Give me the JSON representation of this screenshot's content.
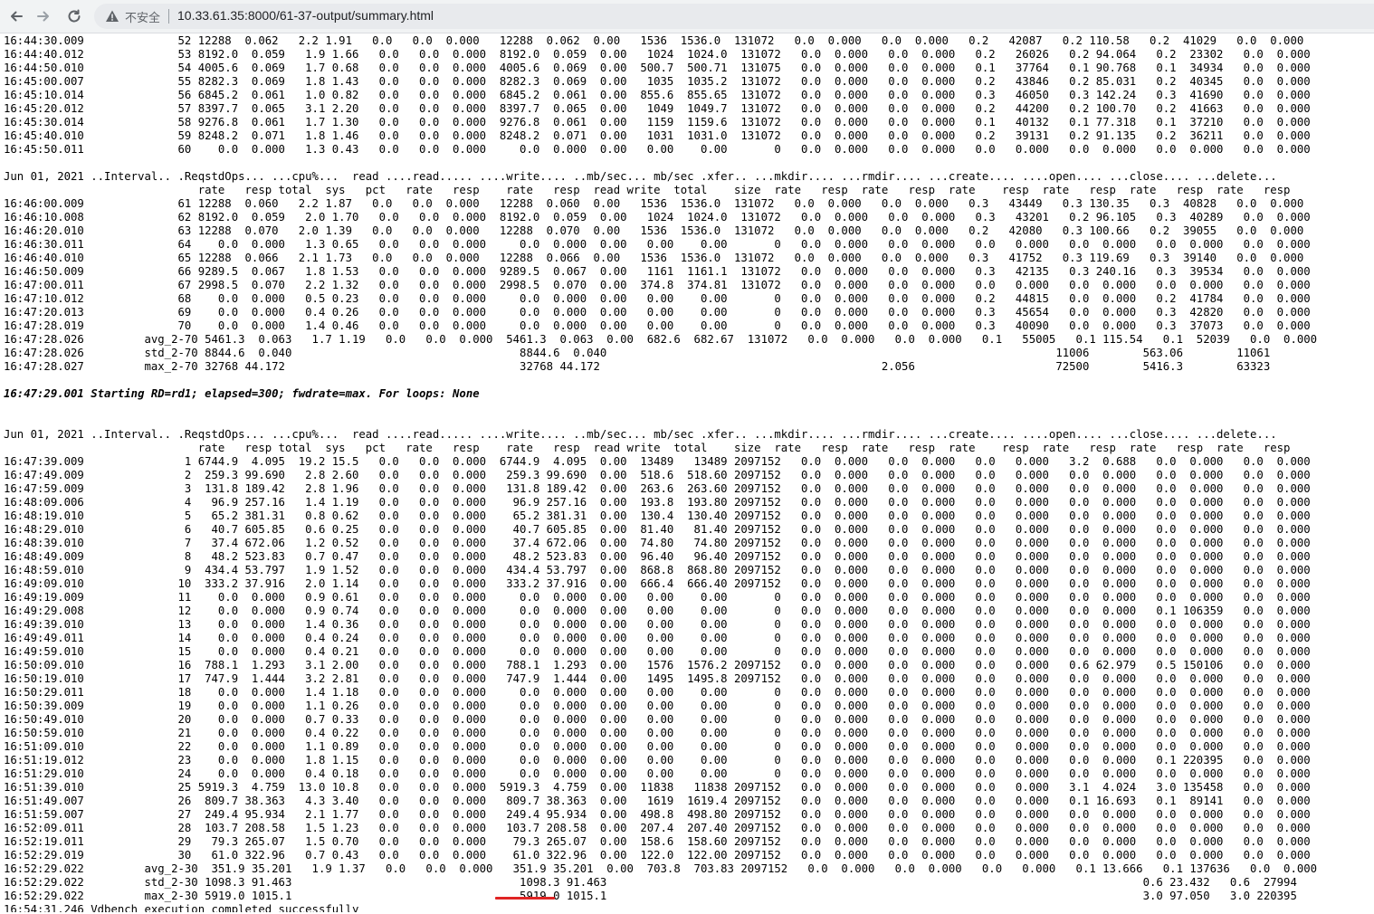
{
  "browser": {
    "security_label": "不安全",
    "url": "10.33.61.35:8000/61-37-output/summary.html"
  },
  "output_lines": [
    {
      "text": "16:44:30.009              52 12288  0.062   2.2 1.91   0.0   0.0  0.000   12288  0.062  0.00   1536  1536.0  131072   0.0  0.000   0.0  0.000   0.2   42087   0.2 110.58   0.2  41029   0.0  0.000",
      "bold": false
    },
    {
      "text": "16:44:40.012              53 8192.0  0.059   1.9 1.66   0.0   0.0  0.000  8192.0  0.059  0.00   1024  1024.0  131072   0.0  0.000   0.0  0.000   0.2   26026   0.2 94.064   0.2  23302   0.0  0.000",
      "bold": false
    },
    {
      "text": "16:44:50.010              54 4005.6  0.069   1.7 0.68   0.0   0.0  0.000  4005.6  0.069  0.00  500.7  500.71  131075   0.0  0.000   0.0  0.000   0.1   37764   0.1 90.768   0.1  34934   0.0  0.000",
      "bold": false
    },
    {
      "text": "16:45:00.007              55 8282.3  0.069   1.8 1.43   0.0   0.0  0.000  8282.3  0.069  0.00   1035  1035.2  131072   0.0  0.000   0.0  0.000   0.2   43846   0.2 85.031   0.2  40345   0.0  0.000",
      "bold": false
    },
    {
      "text": "16:45:10.014              56 6845.2  0.061   1.0 0.82   0.0   0.0  0.000  6845.2  0.061  0.00  855.6  855.65  131072   0.0  0.000   0.0  0.000   0.3   46050   0.3 142.24   0.3  41690   0.0  0.000",
      "bold": false
    },
    {
      "text": "16:45:20.012              57 8397.7  0.065   3.1 2.20   0.0   0.0  0.000  8397.7  0.065  0.00   1049  1049.7  131072   0.0  0.000   0.0  0.000   0.2   44200   0.2 100.70   0.2  41663   0.0  0.000",
      "bold": false
    },
    {
      "text": "16:45:30.014              58 9276.8  0.061   1.7 1.30   0.0   0.0  0.000  9276.8  0.061  0.00   1159  1159.6  131072   0.0  0.000   0.0  0.000   0.1   40132   0.1 77.318   0.1  37210   0.0  0.000",
      "bold": false
    },
    {
      "text": "16:45:40.010              59 8248.2  0.071   1.8 1.46   0.0   0.0  0.000  8248.2  0.071  0.00   1031  1031.0  131072   0.0  0.000   0.0  0.000   0.2   39131   0.2 91.135   0.2  36211   0.0  0.000",
      "bold": false
    },
    {
      "text": "16:45:50.011              60    0.0  0.000   1.3 0.43   0.0   0.0  0.000     0.0  0.000  0.00   0.00    0.00       0   0.0  0.000   0.0  0.000   0.0   0.000   0.0  0.000   0.0  0.000   0.0  0.000",
      "bold": false
    },
    {
      "text": "",
      "bold": false
    },
    {
      "text": "Jun 01, 2021 ..Interval.. .ReqstdOps... ...cpu%...  read ....read..... ....write.... ..mb/sec... mb/sec .xfer.. ...mkdir.... ...rmdir.... ...create.... ....open.... ...close.... ...delete...",
      "bold": false
    },
    {
      "text": "                             rate   resp total  sys   pct   rate   resp    rate   resp  read write  total    size  rate   resp  rate   resp  rate    resp  rate   resp  rate   resp  rate   resp",
      "bold": false
    },
    {
      "text": "16:46:00.009              61 12288  0.060   2.2 1.87   0.0   0.0  0.000   12288  0.060  0.00   1536  1536.0  131072   0.0  0.000   0.0  0.000   0.3   43449   0.3 130.35   0.3  40828   0.0  0.000",
      "bold": false
    },
    {
      "text": "16:46:10.008              62 8192.0  0.059   2.0 1.70   0.0   0.0  0.000  8192.0  0.059  0.00   1024  1024.0  131072   0.0  0.000   0.0  0.000   0.3   43201   0.2 96.105   0.3  40289   0.0  0.000",
      "bold": false
    },
    {
      "text": "16:46:20.010              63 12288  0.070   2.0 1.39   0.0   0.0  0.000   12288  0.070  0.00   1536  1536.0  131072   0.0  0.000   0.0  0.000   0.2   42080   0.3 100.66   0.2  39055   0.0  0.000",
      "bold": false
    },
    {
      "text": "16:46:30.011              64    0.0  0.000   1.3 0.65   0.0   0.0  0.000     0.0  0.000  0.00   0.00    0.00       0   0.0  0.000   0.0  0.000   0.0   0.000   0.0  0.000   0.0  0.000   0.0  0.000",
      "bold": false
    },
    {
      "text": "16:46:40.010              65 12288  0.066   2.1 1.73   0.0   0.0  0.000   12288  0.066  0.00   1536  1536.0  131072   0.0  0.000   0.0  0.000   0.3   41752   0.3 119.69   0.3  39140   0.0  0.000",
      "bold": false
    },
    {
      "text": "16:46:50.009              66 9289.5  0.067   1.8 1.53   0.0   0.0  0.000  9289.5  0.067  0.00   1161  1161.1  131072   0.0  0.000   0.0  0.000   0.3   42135   0.3 240.16   0.3  39534   0.0  0.000",
      "bold": false
    },
    {
      "text": "16:47:00.011              67 2998.5  0.070   2.2 1.32   0.0   0.0  0.000  2998.5  0.070  0.00  374.8  374.81  131072   0.0  0.000   0.0  0.000   0.0   0.000   0.0  0.000   0.0  0.000   0.0  0.000",
      "bold": false
    },
    {
      "text": "16:47:10.012              68    0.0  0.000   0.5 0.23   0.0   0.0  0.000     0.0  0.000  0.00   0.00    0.00       0   0.0  0.000   0.0  0.000   0.2   44815   0.0  0.000   0.2  41784   0.0  0.000",
      "bold": false
    },
    {
      "text": "16:47:20.013              69    0.0  0.000   0.4 0.26   0.0   0.0  0.000     0.0  0.000  0.00   0.00    0.00       0   0.0  0.000   0.0  0.000   0.3   45654   0.0  0.000   0.3  42820   0.0  0.000",
      "bold": false
    },
    {
      "text": "16:47:28.019              70    0.0  0.000   1.4 0.46   0.0   0.0  0.000     0.0  0.000  0.00   0.00    0.00       0   0.0  0.000   0.0  0.000   0.3   40090   0.0  0.000   0.3  37073   0.0  0.000",
      "bold": false
    },
    {
      "text": "16:47:28.026         avg_2-70 5461.3  0.063   1.7 1.19   0.0   0.0  0.000  5461.3  0.063  0.00  682.6  682.67  131072   0.0  0.000   0.0  0.000   0.1   55005   0.1 115.54   0.1  52039   0.0  0.000",
      "bold": false
    },
    {
      "text": "16:47:28.026         std_2-70 8844.6  0.040                                  8844.6  0.040                                                                   11006        563.06        11061",
      "bold": false
    },
    {
      "text": "16:47:28.027         max_2-70 32768 44.172                                   32768 44.172                                          2.056                     72500        5416.3        63323",
      "bold": false
    },
    {
      "text": "",
      "bold": false
    },
    {
      "text": "16:47:29.001 Starting RD=rd1; elapsed=300; fwdrate=max. For loops: None",
      "bold": true
    },
    {
      "text": "",
      "bold": false
    },
    {
      "text": "",
      "bold": false
    },
    {
      "text": "Jun 01, 2021 ..Interval.. .ReqstdOps... ...cpu%...  read ....read..... ....write.... ..mb/sec... mb/sec .xfer.. ...mkdir.... ...rmdir.... ...create.... ....open.... ...close.... ...delete...",
      "bold": false
    },
    {
      "text": "                             rate   resp total  sys   pct   rate   resp    rate   resp  read write  total    size  rate   resp  rate   resp  rate    resp  rate   resp  rate   resp  rate   resp",
      "bold": false
    },
    {
      "text": "16:47:39.009               1 6744.9  4.095  19.2 15.5   0.0   0.0  0.000  6744.9  4.095  0.00  13489   13489 2097152   0.0  0.000   0.0  0.000   0.0   0.000   3.2  0.688   0.0  0.000   0.0  0.000",
      "bold": false
    },
    {
      "text": "16:47:49.009               2  259.3 99.690   2.8 2.60   0.0   0.0  0.000   259.3 99.690  0.00  518.6  518.60 2097152   0.0  0.000   0.0  0.000   0.0   0.000   0.0  0.000   0.0  0.000   0.0  0.000",
      "bold": false
    },
    {
      "text": "16:47:59.009               3  131.8 189.42   2.8 1.96   0.0   0.0  0.000   131.8 189.42  0.00  263.6  263.60 2097152   0.0  0.000   0.0  0.000   0.0   0.000   0.0  0.000   0.0  0.000   0.0  0.000",
      "bold": false
    },
    {
      "text": "16:48:09.006               4   96.9 257.16   1.4 1.19   0.0   0.0  0.000    96.9 257.16  0.00  193.8  193.80 2097152   0.0  0.000   0.0  0.000   0.0   0.000   0.0  0.000   0.0  0.000   0.0  0.000",
      "bold": false
    },
    {
      "text": "16:48:19.010               5   65.2 381.31   0.8 0.62   0.0   0.0  0.000    65.2 381.31  0.00  130.4  130.40 2097152   0.0  0.000   0.0  0.000   0.0   0.000   0.0  0.000   0.0  0.000   0.0  0.000",
      "bold": false
    },
    {
      "text": "16:48:29.010               6   40.7 605.85   0.6 0.25   0.0   0.0  0.000    40.7 605.85  0.00  81.40   81.40 2097152   0.0  0.000   0.0  0.000   0.0   0.000   0.0  0.000   0.0  0.000   0.0  0.000",
      "bold": false
    },
    {
      "text": "16:48:39.010               7   37.4 672.06   1.2 0.52   0.0   0.0  0.000    37.4 672.06  0.00  74.80   74.80 2097152   0.0  0.000   0.0  0.000   0.0   0.000   0.0  0.000   0.0  0.000   0.0  0.000",
      "bold": false
    },
    {
      "text": "16:48:49.009               8   48.2 523.83   0.7 0.47   0.0   0.0  0.000    48.2 523.83  0.00  96.40   96.40 2097152   0.0  0.000   0.0  0.000   0.0   0.000   0.0  0.000   0.0  0.000   0.0  0.000",
      "bold": false
    },
    {
      "text": "16:48:59.010               9  434.4 53.797   1.9 1.52   0.0   0.0  0.000   434.4 53.797  0.00  868.8  868.80 2097152   0.0  0.000   0.0  0.000   0.0   0.000   0.0  0.000   0.0  0.000   0.0  0.000",
      "bold": false
    },
    {
      "text": "16:49:09.010              10  333.2 37.916   2.0 1.14   0.0   0.0  0.000   333.2 37.916  0.00  666.4  666.40 2097152   0.0  0.000   0.0  0.000   0.0   0.000   0.0  0.000   0.0  0.000   0.0  0.000",
      "bold": false
    },
    {
      "text": "16:49:19.009              11    0.0  0.000   0.9 0.61   0.0   0.0  0.000     0.0  0.000  0.00   0.00    0.00       0   0.0  0.000   0.0  0.000   0.0   0.000   0.0  0.000   0.0  0.000   0.0  0.000",
      "bold": false
    },
    {
      "text": "16:49:29.008              12    0.0  0.000   0.9 0.74   0.0   0.0  0.000     0.0  0.000  0.00   0.00    0.00       0   0.0  0.000   0.0  0.000   0.0   0.000   0.0  0.000   0.1 106359   0.0  0.000",
      "bold": false
    },
    {
      "text": "16:49:39.010              13    0.0  0.000   1.4 0.36   0.0   0.0  0.000     0.0  0.000  0.00   0.00    0.00       0   0.0  0.000   0.0  0.000   0.0   0.000   0.0  0.000   0.0  0.000   0.0  0.000",
      "bold": false
    },
    {
      "text": "16:49:49.011              14    0.0  0.000   0.4 0.24   0.0   0.0  0.000     0.0  0.000  0.00   0.00    0.00       0   0.0  0.000   0.0  0.000   0.0   0.000   0.0  0.000   0.0  0.000   0.0  0.000",
      "bold": false
    },
    {
      "text": "16:49:59.010              15    0.0  0.000   0.4 0.21   0.0   0.0  0.000     0.0  0.000  0.00   0.00    0.00       0   0.0  0.000   0.0  0.000   0.0   0.000   0.0  0.000   0.0  0.000   0.0  0.000",
      "bold": false
    },
    {
      "text": "16:50:09.010              16  788.1  1.293   3.1 2.00   0.0   0.0  0.000   788.1  1.293  0.00   1576  1576.2 2097152   0.0  0.000   0.0  0.000   0.0   0.000   0.6 62.979   0.5 150106   0.0  0.000",
      "bold": false
    },
    {
      "text": "16:50:19.010              17  747.9  1.444   3.2 2.81   0.0   0.0  0.000   747.9  1.444  0.00   1495  1495.8 2097152   0.0  0.000   0.0  0.000   0.0   0.000   0.0  0.000   0.0  0.000   0.0  0.000",
      "bold": false
    },
    {
      "text": "16:50:29.011              18    0.0  0.000   1.4 1.18   0.0   0.0  0.000     0.0  0.000  0.00   0.00    0.00       0   0.0  0.000   0.0  0.000   0.0   0.000   0.0  0.000   0.0  0.000   0.0  0.000",
      "bold": false
    },
    {
      "text": "16:50:39.009              19    0.0  0.000   1.1 0.26   0.0   0.0  0.000     0.0  0.000  0.00   0.00    0.00       0   0.0  0.000   0.0  0.000   0.0   0.000   0.0  0.000   0.0  0.000   0.0  0.000",
      "bold": false
    },
    {
      "text": "16:50:49.010              20    0.0  0.000   0.7 0.33   0.0   0.0  0.000     0.0  0.000  0.00   0.00    0.00       0   0.0  0.000   0.0  0.000   0.0   0.000   0.0  0.000   0.0  0.000   0.0  0.000",
      "bold": false
    },
    {
      "text": "16:50:59.010              21    0.0  0.000   0.4 0.22   0.0   0.0  0.000     0.0  0.000  0.00   0.00    0.00       0   0.0  0.000   0.0  0.000   0.0   0.000   0.0  0.000   0.0  0.000   0.0  0.000",
      "bold": false
    },
    {
      "text": "16:51:09.010              22    0.0  0.000   1.1 0.89   0.0   0.0  0.000     0.0  0.000  0.00   0.00    0.00       0   0.0  0.000   0.0  0.000   0.0   0.000   0.0  0.000   0.0  0.000   0.0  0.000",
      "bold": false
    },
    {
      "text": "16:51:19.012              23    0.0  0.000   1.8 1.15   0.0   0.0  0.000     0.0  0.000  0.00   0.00    0.00       0   0.0  0.000   0.0  0.000   0.0   0.000   0.0  0.000   0.1 220395   0.0  0.000",
      "bold": false
    },
    {
      "text": "16:51:29.010              24    0.0  0.000   0.4 0.18   0.0   0.0  0.000     0.0  0.000  0.00   0.00    0.00       0   0.0  0.000   0.0  0.000   0.0   0.000   0.0  0.000   0.0  0.000   0.0  0.000",
      "bold": false
    },
    {
      "text": "16:51:39.010              25 5919.3  4.759  13.0 10.8   0.0   0.0  0.000  5919.3  4.759  0.00  11838   11838 2097152   0.0  0.000   0.0  0.000   0.0   0.000   3.1  4.024   3.0 135458   0.0  0.000",
      "bold": false
    },
    {
      "text": "16:51:49.007              26  809.7 38.363   4.3 3.40   0.0   0.0  0.000   809.7 38.363  0.00   1619  1619.4 2097152   0.0  0.000   0.0  0.000   0.0   0.000   0.1 16.693   0.1  89141   0.0  0.000",
      "bold": false
    },
    {
      "text": "16:51:59.007              27  249.4 95.934   2.1 1.77   0.0   0.0  0.000   249.4 95.934  0.00  498.8  498.80 2097152   0.0  0.000   0.0  0.000   0.0   0.000   0.0  0.000   0.0  0.000   0.0  0.000",
      "bold": false
    },
    {
      "text": "16:52:09.011              28  103.7 208.58   1.5 1.23   0.0   0.0  0.000   103.7 208.58  0.00  207.4  207.40 2097152   0.0  0.000   0.0  0.000   0.0   0.000   0.0  0.000   0.0  0.000   0.0  0.000",
      "bold": false
    },
    {
      "text": "16:52:19.011              29   79.3 265.07   1.5 0.70   0.0   0.0  0.000    79.3 265.07  0.00  158.6  158.60 2097152   0.0  0.000   0.0  0.000   0.0   0.000   0.0  0.000   0.0  0.000   0.0  0.000",
      "bold": false
    },
    {
      "text": "16:52:29.019              30   61.0 322.96   0.7 0.43   0.0   0.0  0.000    61.0 322.96  0.00  122.0  122.00 2097152   0.0  0.000   0.0  0.000   0.0   0.000   0.0  0.000   0.0  0.000   0.0  0.000",
      "bold": false
    },
    {
      "text": "16:52:29.022         avg_2-30  351.9 35.201   1.9 1.37   0.0   0.0  0.000   351.9 35.201  0.00  703.8  703.83 2097152   0.0  0.000   0.0  0.000   0.0   0.000   0.1 13.666   0.1 137636   0.0  0.000",
      "bold": false
    },
    {
      "text": "16:52:29.022         std_2-30 1098.3 91.463                                  1098.3 91.463                                                                                0.6 23.432   0.6  27994",
      "bold": false
    },
    {
      "text": "16:52:29.022         max_2-30 5919.0 1015.1                                  5919.0 1015.1                                                                                3.0 97.050   3.0 220395",
      "bold": false
    },
    {
      "text": "16:54:31.246 Vdbench execution completed successfully",
      "bold": false
    }
  ]
}
